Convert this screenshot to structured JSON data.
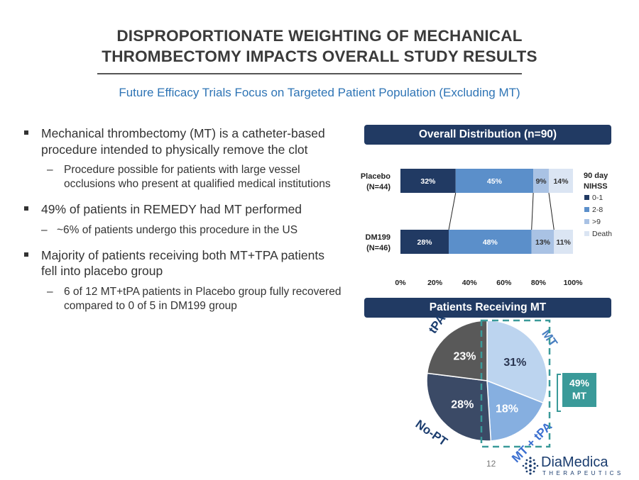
{
  "title": {
    "line1": "DISPROPORTIONATE WEIGHTING OF MECHANICAL",
    "line2": "THROMBECTOMY IMPACTS OVERALL STUDY RESULTS"
  },
  "subtitle": "Future Efficacy Trials Focus on Targeted Patient Population (Excluding MT)",
  "bullets": [
    {
      "text": "Mechanical thrombectomy (MT) is a catheter-based procedure intended to physically remove the clot",
      "sub": [
        {
          "marker": "–",
          "text": "Procedure possible for patients with large vessel occlusions who present at qualified medical institutions"
        }
      ]
    },
    {
      "text": "49% of patients in REMEDY had MT performed",
      "sub": [
        {
          "marker": "–",
          "text": "~6% of patients undergo this procedure in the US"
        }
      ]
    },
    {
      "text": "Majority of patients receiving both MT+TPA patients fell into placebo group",
      "sub": [
        {
          "marker": "–",
          "text": "6 of 12 MT+tPA patients in Placebo group fully recovered compared to 0 of 5 in DM199 group"
        }
      ]
    }
  ],
  "colors": {
    "navy": "#213a63",
    "title": "#3a3a3a",
    "subtitle": "#2e74b5",
    "teal": "#3a9a99",
    "seg": [
      "#213a63",
      "#5b8fca",
      "#a9c2e4",
      "#dbe5f3"
    ],
    "pie": [
      "#bcd4ef",
      "#86afe0",
      "#3b4a66",
      "#595959"
    ]
  },
  "panel1_header": "Overall Distribution (n=90)",
  "panel2_header": "Patients Receiving MT",
  "legend": {
    "title_line1": "90 day",
    "title_line2": "NIHSS"
  },
  "chart_data": [
    {
      "type": "bar",
      "orientation": "horizontal",
      "stacked": true,
      "title": "Overall Distribution (n=90)",
      "categories": [
        {
          "label_line1": "Placebo",
          "label_line2": "(N=44)"
        },
        {
          "label_line1": "DM199",
          "label_line2": "(N=46)"
        }
      ],
      "series": [
        {
          "name": "0-1",
          "values": [
            32,
            28
          ],
          "labels": [
            "32%",
            "28%"
          ]
        },
        {
          "name": "2-8",
          "values": [
            45,
            48
          ],
          "labels": [
            "45%",
            "48%"
          ]
        },
        {
          "name": ">9",
          "values": [
            9,
            13
          ],
          "labels": [
            "9%",
            "13%"
          ]
        },
        {
          "name": "Death",
          "values": [
            14,
            11
          ],
          "labels": [
            "14%",
            "11%"
          ]
        }
      ],
      "xlim": [
        0,
        100
      ],
      "xticks": [
        "0%",
        "20%",
        "40%",
        "60%",
        "80%",
        "100%"
      ],
      "legend_title": "90 day NIHSS",
      "legend_position": "right"
    },
    {
      "type": "pie",
      "title": "Patients Receiving MT",
      "slices": [
        {
          "name": "MT",
          "value": 31,
          "label": "31%"
        },
        {
          "name": "MT + tPA",
          "value": 18,
          "label": "18%"
        },
        {
          "name": "No-PT",
          "value": 28,
          "label": "28%"
        },
        {
          "name": "tPA",
          "value": 23,
          "label": "23%"
        }
      ],
      "callout": {
        "line1": "49%",
        "line2": "MT"
      }
    }
  ],
  "page_number": "12",
  "logo": {
    "name": "DiaMedica",
    "sub": "THERAPEUTICS"
  }
}
